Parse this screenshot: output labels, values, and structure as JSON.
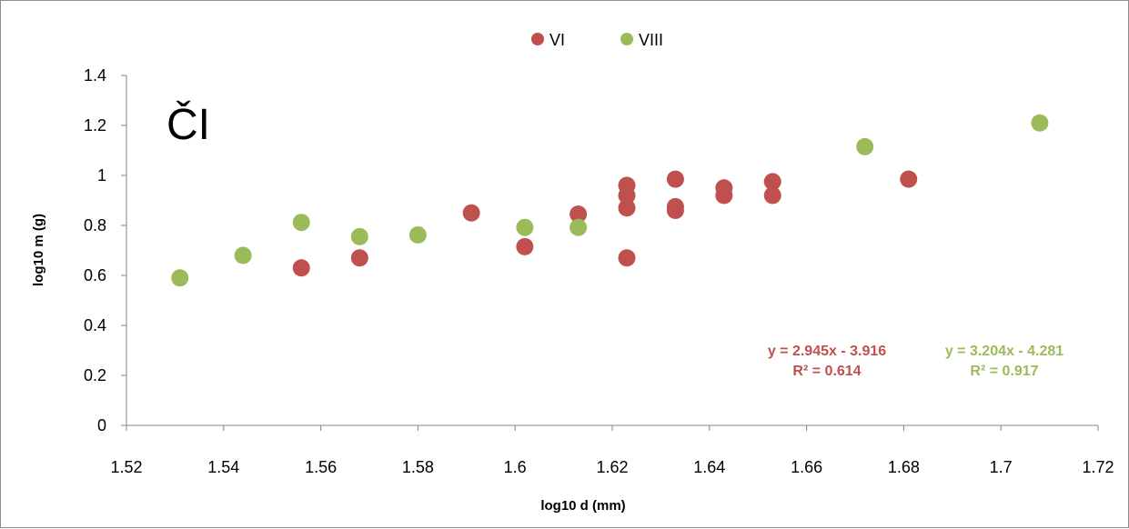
{
  "chart_data": {
    "type": "scatter",
    "title": "",
    "panel_label": "ČI",
    "xlabel": "log10 d (mm)",
    "ylabel": "log10 m (g)",
    "xlim": [
      1.52,
      1.72
    ],
    "ylim": [
      0,
      1.4
    ],
    "x_ticks": [
      "1.52",
      "1.54",
      "1.56",
      "1.58",
      "1.6",
      "1.62",
      "1.64",
      "1.66",
      "1.68",
      "1.7",
      "1.72"
    ],
    "y_ticks": [
      "0",
      "0.2",
      "0.4",
      "0.6",
      "0.8",
      "1",
      "1.2",
      "1.4"
    ],
    "grid": false,
    "legend_position": "top-center",
    "series": [
      {
        "name": "VI",
        "color": "#c0504d",
        "points": [
          [
            1.556,
            0.63
          ],
          [
            1.568,
            0.67
          ],
          [
            1.591,
            0.85
          ],
          [
            1.602,
            0.715
          ],
          [
            1.613,
            0.845
          ],
          [
            1.623,
            0.67
          ],
          [
            1.623,
            0.87
          ],
          [
            1.623,
            0.92
          ],
          [
            1.623,
            0.96
          ],
          [
            1.633,
            0.86
          ],
          [
            1.633,
            0.875
          ],
          [
            1.633,
            0.985
          ],
          [
            1.643,
            0.92
          ],
          [
            1.643,
            0.95
          ],
          [
            1.653,
            0.92
          ],
          [
            1.653,
            0.975
          ],
          [
            1.681,
            0.985
          ]
        ],
        "trendline": {
          "equation": "y = 2.945x - 3.916",
          "r2": "R² = 0.614"
        }
      },
      {
        "name": "VIII",
        "color": "#9bbb59",
        "points": [
          [
            1.531,
            0.59
          ],
          [
            1.544,
            0.68
          ],
          [
            1.556,
            0.812
          ],
          [
            1.568,
            0.755
          ],
          [
            1.58,
            0.762
          ],
          [
            1.602,
            0.792
          ],
          [
            1.613,
            0.792
          ],
          [
            1.672,
            1.115
          ],
          [
            1.708,
            1.21
          ]
        ],
        "trendline": {
          "equation": "y = 3.204x - 4.281",
          "r2": "R² = 0.917"
        }
      }
    ]
  }
}
